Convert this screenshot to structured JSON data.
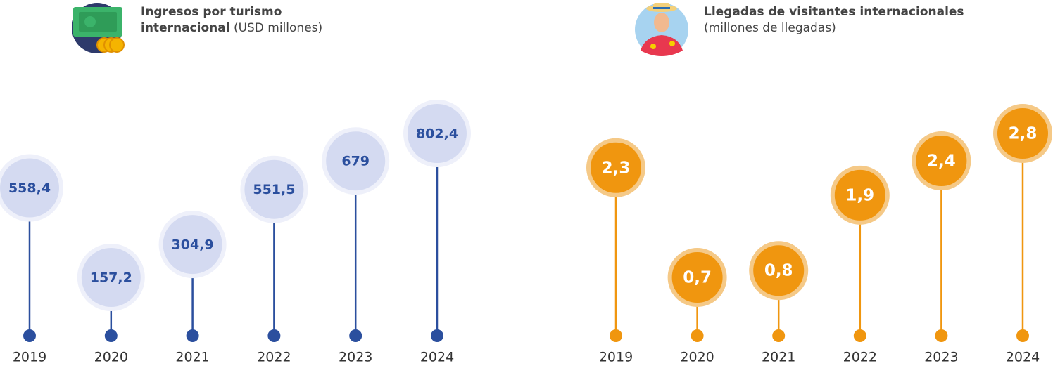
{
  "chart_data": [
    {
      "type": "lollipop",
      "title": "Ingresos por turismo internacional",
      "subtitle": "(USD millones)",
      "categories": [
        "2019",
        "2020",
        "2021",
        "2022",
        "2023",
        "2024"
      ],
      "values": [
        558.4,
        157.2,
        304.9,
        551.5,
        679,
        802.4
      ],
      "value_labels": [
        "558,4",
        "157,2",
        "304,9",
        "551,5",
        "679",
        "802,4"
      ],
      "color": "#2b4f9e"
    },
    {
      "type": "lollipop",
      "title": "Llegadas de visitantes internacionales",
      "subtitle": "(millones de llegadas)",
      "categories": [
        "2019",
        "2020",
        "2021",
        "2022",
        "2023",
        "2024"
      ],
      "values": [
        2.3,
        0.7,
        0.8,
        1.9,
        2.4,
        2.8
      ],
      "value_labels": [
        "2,3",
        "0,7",
        "0,8",
        "1,9",
        "2,4",
        "2,8"
      ],
      "color": "#f0960f"
    }
  ]
}
